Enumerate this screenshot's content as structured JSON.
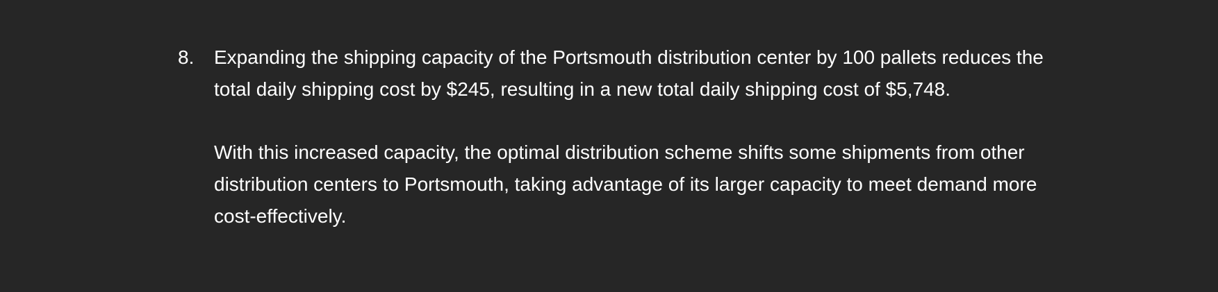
{
  "item": {
    "number": "8.",
    "paragraphs": [
      "Expanding the shipping capacity of the Portsmouth distribution center by 100 pallets reduces the total daily shipping cost by $245, resulting in a new total daily shipping cost of $5,748.",
      "With this increased capacity, the optimal distribution scheme shifts some shipments from other distribution centers to Portsmouth, taking advantage of its larger capacity to meet demand more cost-effectively."
    ]
  }
}
